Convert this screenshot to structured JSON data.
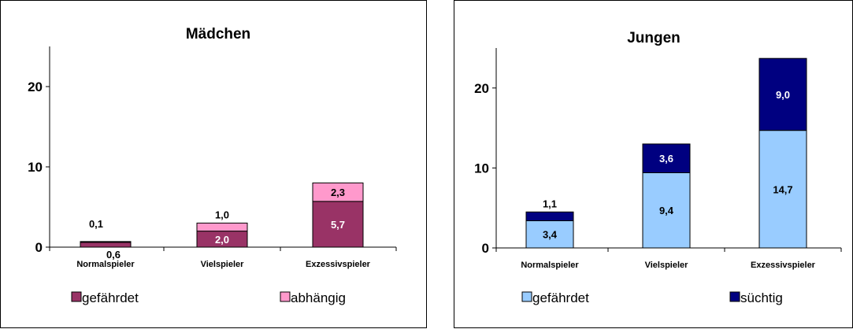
{
  "chart_data": [
    {
      "type": "bar",
      "stacked": true,
      "title": "Mädchen",
      "categories": [
        "Normalspieler",
        "Vielspieler",
        "Exzessivspieler"
      ],
      "series": [
        {
          "name": "gefährdet",
          "values": [
            0.6,
            2.0,
            5.7
          ],
          "labels": [
            "0,6",
            "2,0",
            "5,7"
          ],
          "color": "#993366"
        },
        {
          "name": "abhängig",
          "values": [
            0.1,
            1.0,
            2.3
          ],
          "labels": [
            "0,1",
            "1,0",
            "2,3"
          ],
          "color": "#ff99cc"
        }
      ],
      "yticks": [
        "0",
        "10",
        "20"
      ],
      "ylim": [
        0,
        25
      ],
      "grid": false,
      "legend_position": "bottom"
    },
    {
      "type": "bar",
      "stacked": true,
      "title": "Jungen",
      "categories": [
        "Normalspieler",
        "Vielspieler",
        "Exzessivspieler"
      ],
      "series": [
        {
          "name": "gefährdet",
          "values": [
            3.4,
            9.4,
            14.7
          ],
          "labels": [
            "3,4",
            "9,4",
            "14,7"
          ],
          "color": "#99ccff"
        },
        {
          "name": "süchtig",
          "values": [
            1.1,
            3.6,
            9.0
          ],
          "labels": [
            "1,1",
            "3,6",
            "9,0"
          ],
          "color": "#000080"
        }
      ],
      "yticks": [
        "0",
        "10",
        "20"
      ],
      "ylim": [
        0,
        25
      ],
      "grid": false,
      "legend_position": "bottom"
    }
  ]
}
